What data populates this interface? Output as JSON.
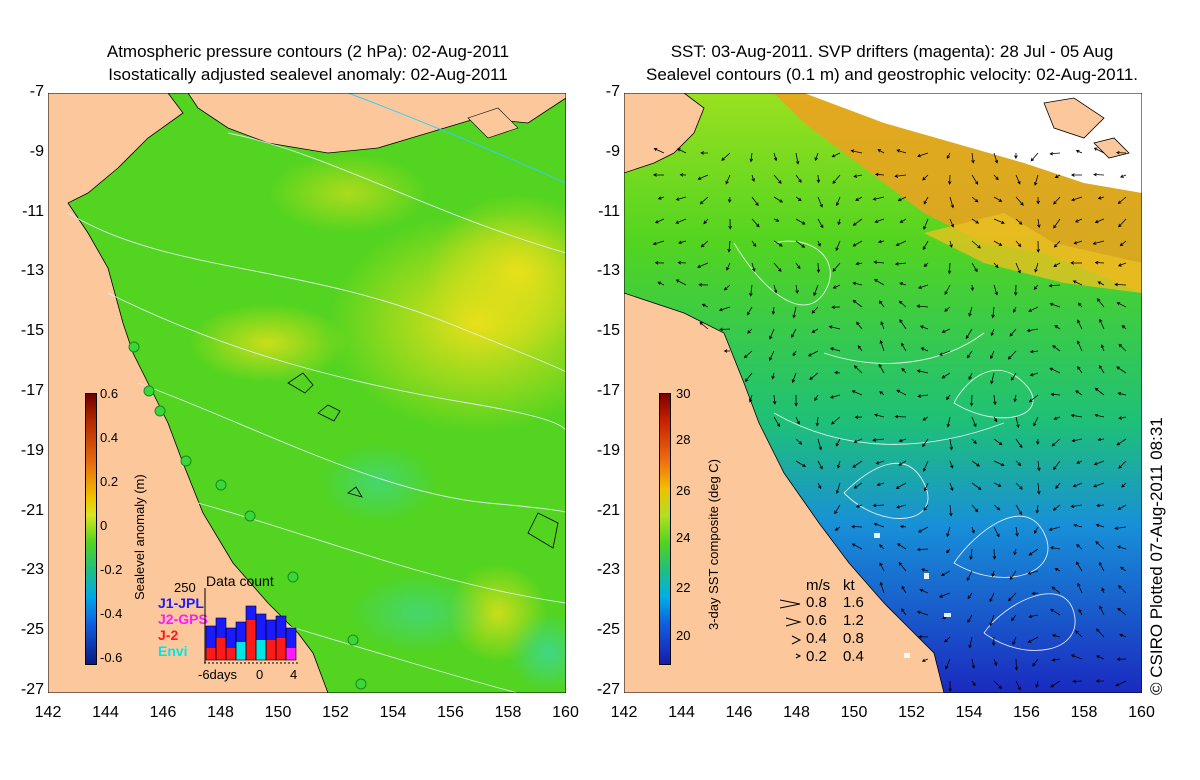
{
  "left_panel": {
    "title_line1": "Atmospheric pressure contours (2 hPa): 02-Aug-2011",
    "title_line2": "Isostatically adjusted sealevel anomaly: 02-Aug-2011",
    "colorbar": {
      "label": "Sealevel anomaly (m)",
      "ticks": [
        "0.6",
        "0.4",
        "0.2",
        "0",
        "-0.2",
        "-0.4",
        "-0.6"
      ]
    },
    "data_count": {
      "title": "Data count",
      "max_label": "250",
      "legend": [
        {
          "label": "J1-JPL",
          "color": "#1a1aff"
        },
        {
          "label": "J2-GPS",
          "color": "#ff1aff"
        },
        {
          "label": "J-2",
          "color": "#ff1a1a"
        },
        {
          "label": "Envi",
          "color": "#00e5e5"
        }
      ],
      "x_ticks": [
        "-6days",
        "0",
        "4"
      ]
    }
  },
  "right_panel": {
    "title_line1": "SST: 03-Aug-2011. SVP drifters (magenta): 28 Jul - 05 Aug",
    "title_line2": "Sealevel contours (0.1 m) and geostrophic velocity: 02-Aug-2011.",
    "colorbar": {
      "label": "3-day SST composite (deg C)",
      "ticks": [
        "30",
        "28",
        "26",
        "24",
        "22",
        "20"
      ]
    },
    "velocity_legend": {
      "header_ms": "m/s",
      "header_kt": "kt",
      "rows": [
        {
          "ms": "0.8",
          "kt": "1.6"
        },
        {
          "ms": "0.6",
          "kt": "1.2"
        },
        {
          "ms": "0.4",
          "kt": "0.8"
        },
        {
          "ms": "0.2",
          "kt": "0.4"
        }
      ]
    }
  },
  "axes": {
    "lat_ticks": [
      "-7",
      "-9",
      "-11",
      "-13",
      "-15",
      "-17",
      "-19",
      "-21",
      "-23",
      "-25",
      "-27"
    ],
    "lon_ticks": [
      "142",
      "144",
      "146",
      "148",
      "150",
      "152",
      "154",
      "156",
      "158",
      "160"
    ]
  },
  "credit": "© CSIRO Plotted 07-Aug-2011 08:31",
  "colors": {
    "land": "#fcc89b",
    "ocean_green": "#52d420",
    "ocean_yellow": "#d6e620"
  }
}
